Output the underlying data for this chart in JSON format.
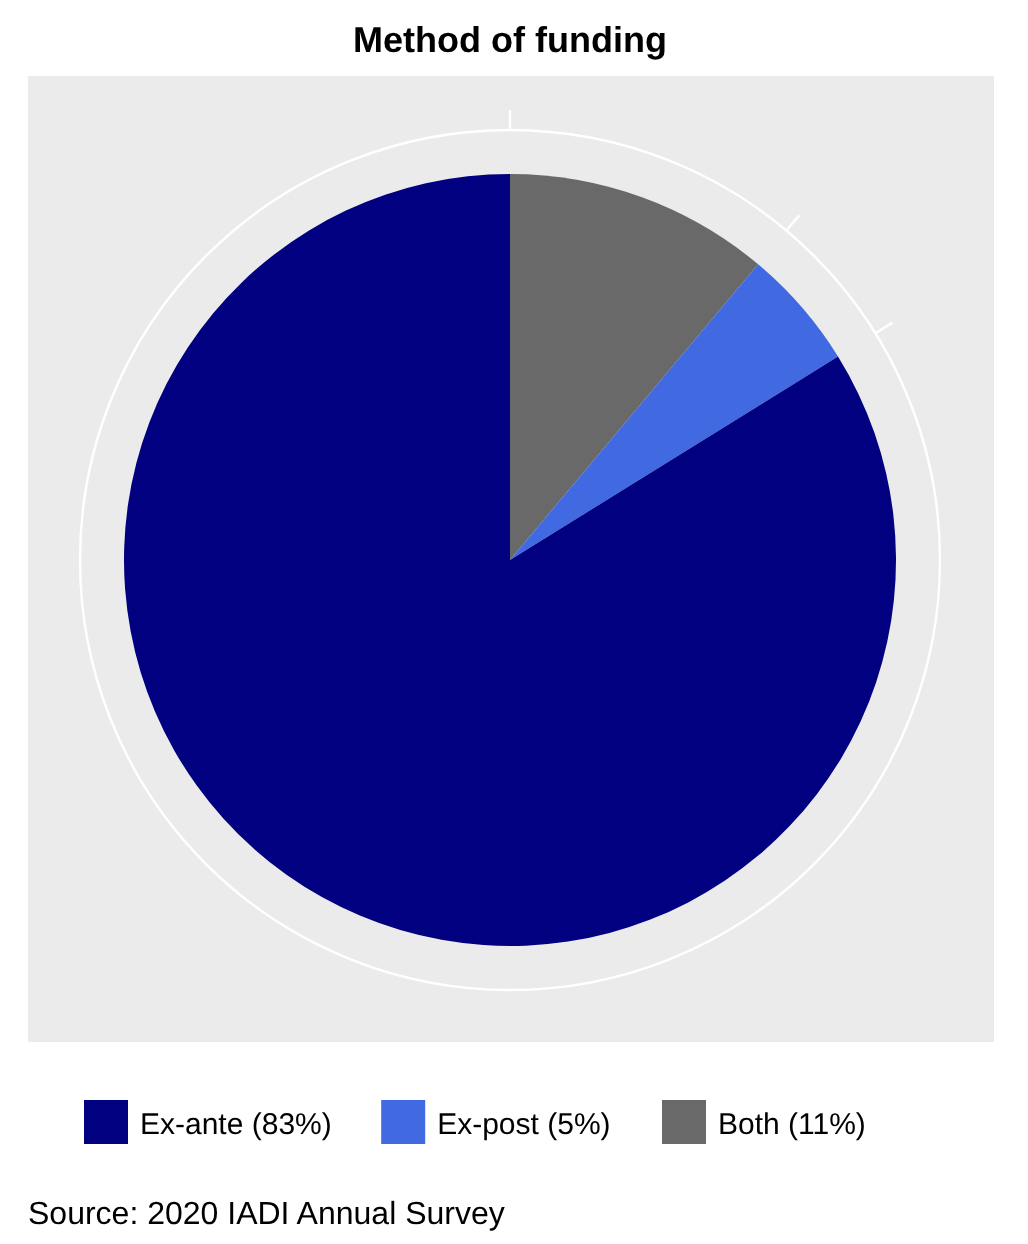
{
  "chart_data": {
    "type": "pie",
    "title": "Method of funding",
    "categories": [
      "Ex-ante (83%)",
      "Ex-post (5%)",
      "Both (11%)"
    ],
    "values": [
      83,
      5,
      11
    ],
    "colors": [
      "#000080",
      "#4169e1",
      "#696969"
    ],
    "legend": "bottom",
    "grid": true,
    "annotations": [
      "Source: 2020 IADI Annual Survey"
    ]
  }
}
